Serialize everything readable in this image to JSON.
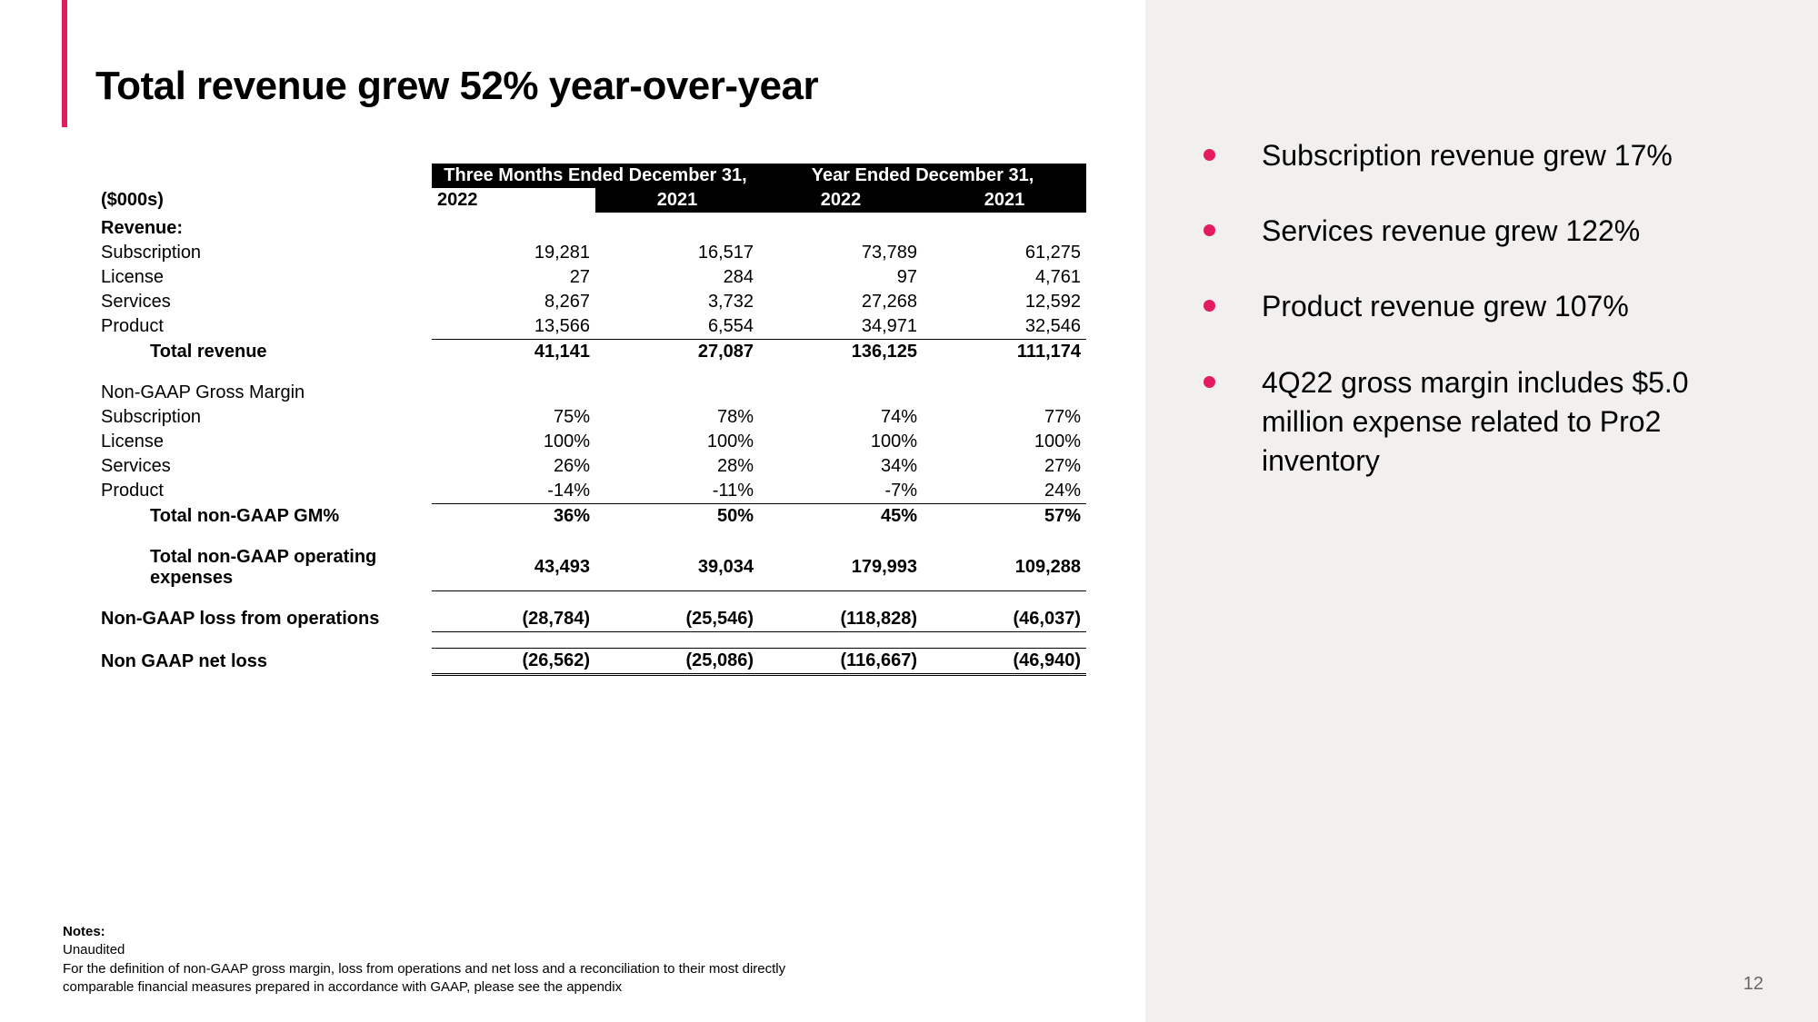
{
  "colors": {
    "accent": "#e31b5f",
    "sidebar_bg": "#f2f0ee",
    "text": "#000000",
    "page_num": "#666666"
  },
  "title": "Total revenue grew 52% year-over-year",
  "table": {
    "units_label": "($000s)",
    "period_group_1": "Three Months Ended December 31,",
    "period_group_2": "Year Ended December 31,",
    "years": {
      "a": "2022",
      "b": "2021",
      "c": "2022",
      "d": "2021"
    },
    "sec_revenue": "Revenue:",
    "rows_revenue": [
      {
        "label": "Subscription",
        "a": "19,281",
        "b": "16,517",
        "c": "73,789",
        "d": "61,275"
      },
      {
        "label": "License",
        "a": "27",
        "b": "284",
        "c": "97",
        "d": "4,761"
      },
      {
        "label": "Services",
        "a": "8,267",
        "b": "3,732",
        "c": "27,268",
        "d": "12,592"
      },
      {
        "label": "Product",
        "a": "13,566",
        "b": "6,554",
        "c": "34,971",
        "d": "32,546"
      }
    ],
    "total_revenue": {
      "label": "Total revenue",
      "a": "41,141",
      "b": "27,087",
      "c": "136,125",
      "d": "111,174"
    },
    "sec_gm": "Non-GAAP Gross Margin",
    "rows_gm": [
      {
        "label": "Subscription",
        "a": "75%",
        "b": "78%",
        "c": "74%",
        "d": "77%"
      },
      {
        "label": "License",
        "a": "100%",
        "b": "100%",
        "c": "100%",
        "d": "100%"
      },
      {
        "label": "Services",
        "a": "26%",
        "b": "28%",
        "c": "34%",
        "d": "27%"
      },
      {
        "label": "Product",
        "a": "-14%",
        "b": "-11%",
        "c": "-7%",
        "d": "24%"
      }
    ],
    "total_gm": {
      "label": "Total non-GAAP GM%",
      "a": "36%",
      "b": "50%",
      "c": "45%",
      "d": "57%"
    },
    "opex": {
      "label": "Total non-GAAP operating expenses",
      "a": "43,493",
      "b": "39,034",
      "c": "179,993",
      "d": "109,288"
    },
    "loss_ops": {
      "label": "Non-GAAP loss from operations",
      "a": "(28,784)",
      "b": "(25,546)",
      "c": "(118,828)",
      "d": "(46,037)"
    },
    "net_loss": {
      "label": "Non GAAP net loss",
      "a": "(26,562)",
      "b": "(25,086)",
      "c": "(116,667)",
      "d": "(46,940)"
    }
  },
  "bullets": [
    "Subscription revenue grew 17%",
    "Services revenue grew 122%",
    "Product revenue grew 107%",
    "4Q22 gross margin includes $5.0 million expense related to Pro2 inventory"
  ],
  "notes": {
    "heading": "Notes:",
    "line1": "Unaudited",
    "line2": "For the definition of non-GAAP gross margin, loss from operations and net loss and a reconciliation to their most directly comparable financial measures prepared in accordance with GAAP,  please see the appendix"
  },
  "page_number": "12"
}
